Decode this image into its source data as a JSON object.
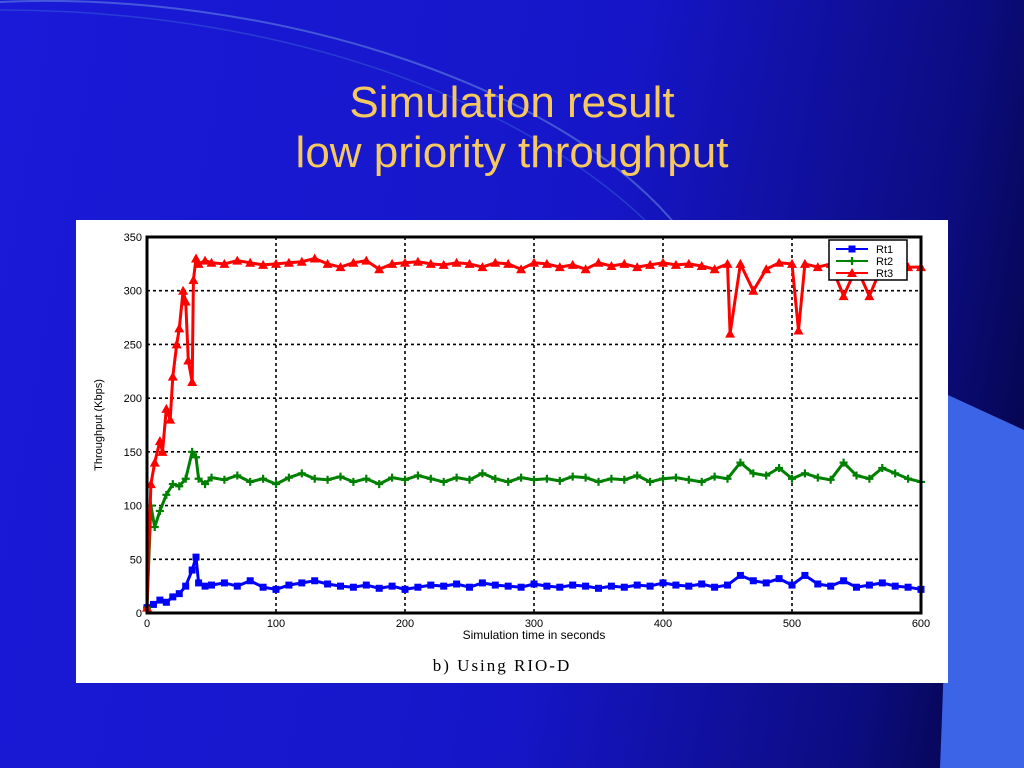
{
  "slide": {
    "title_line1": "Simulation result",
    "title_line2": "low priority throughput",
    "title_color": "#f5c860",
    "background_color": "#1818d0"
  },
  "chart_data": {
    "type": "line",
    "caption": "b) Using RIO-D",
    "xlabel": "Simulation time in seconds",
    "ylabel": "Throughput (Kbps)",
    "xlim": [
      0,
      600
    ],
    "ylim": [
      0,
      350
    ],
    "xticks": [
      0,
      100,
      200,
      300,
      400,
      500,
      600
    ],
    "yticks": [
      0,
      50,
      100,
      150,
      200,
      250,
      300,
      350
    ],
    "grid": true,
    "legend_position": "top-right",
    "series": [
      {
        "name": "Rt1",
        "color": "#0000ff",
        "marker": "square",
        "x": [
          0,
          5,
          10,
          15,
          20,
          25,
          30,
          35,
          38,
          40,
          45,
          50,
          60,
          70,
          80,
          90,
          100,
          110,
          120,
          130,
          140,
          150,
          160,
          170,
          180,
          190,
          200,
          210,
          220,
          230,
          240,
          250,
          260,
          270,
          280,
          290,
          300,
          310,
          320,
          330,
          340,
          350,
          360,
          370,
          380,
          390,
          400,
          410,
          420,
          430,
          440,
          450,
          460,
          470,
          480,
          490,
          500,
          510,
          520,
          530,
          540,
          550,
          560,
          570,
          580,
          590,
          600
        ],
        "values": [
          5,
          8,
          12,
          10,
          15,
          18,
          25,
          40,
          52,
          28,
          25,
          26,
          28,
          25,
          30,
          24,
          22,
          26,
          28,
          30,
          27,
          25,
          24,
          26,
          23,
          25,
          22,
          24,
          26,
          25,
          27,
          24,
          28,
          26,
          25,
          24,
          27,
          25,
          24,
          26,
          25,
          23,
          25,
          24,
          26,
          25,
          28,
          26,
          25,
          27,
          24,
          26,
          35,
          30,
          28,
          32,
          26,
          35,
          27,
          25,
          30,
          24,
          26,
          28,
          25,
          24,
          22
        ]
      },
      {
        "name": "Rt2",
        "color": "#008000",
        "marker": "plus",
        "x": [
          0,
          3,
          6,
          10,
          15,
          20,
          25,
          30,
          35,
          38,
          40,
          45,
          50,
          60,
          70,
          80,
          90,
          100,
          110,
          120,
          130,
          140,
          150,
          160,
          170,
          180,
          190,
          200,
          210,
          220,
          230,
          240,
          250,
          260,
          270,
          280,
          290,
          300,
          310,
          320,
          330,
          340,
          350,
          360,
          370,
          380,
          390,
          400,
          410,
          420,
          430,
          440,
          450,
          460,
          470,
          480,
          490,
          500,
          510,
          520,
          530,
          540,
          550,
          560,
          570,
          580,
          590,
          600
        ],
        "values": [
          5,
          100,
          80,
          95,
          110,
          120,
          118,
          125,
          150,
          145,
          125,
          120,
          126,
          124,
          128,
          122,
          125,
          120,
          126,
          130,
          125,
          124,
          127,
          122,
          125,
          120,
          126,
          124,
          128,
          125,
          122,
          126,
          124,
          130,
          125,
          122,
          126,
          124,
          125,
          123,
          127,
          126,
          122,
          125,
          124,
          128,
          122,
          125,
          126,
          124,
          122,
          127,
          125,
          140,
          130,
          128,
          135,
          125,
          130,
          126,
          124,
          140,
          128,
          125,
          135,
          130,
          125,
          122
        ]
      },
      {
        "name": "Rt3",
        "color": "#ff0000",
        "marker": "triangle",
        "x": [
          0,
          3,
          6,
          10,
          12,
          15,
          18,
          20,
          23,
          25,
          28,
          30,
          32,
          35,
          36,
          38,
          40,
          45,
          50,
          60,
          70,
          80,
          90,
          100,
          110,
          120,
          130,
          140,
          150,
          160,
          170,
          180,
          190,
          200,
          210,
          220,
          230,
          240,
          250,
          260,
          270,
          280,
          290,
          300,
          310,
          320,
          330,
          340,
          350,
          360,
          370,
          380,
          390,
          400,
          410,
          420,
          430,
          440,
          450,
          452,
          460,
          470,
          480,
          490,
          500,
          505,
          510,
          520,
          530,
          540,
          550,
          560,
          570,
          580,
          590,
          600
        ],
        "values": [
          5,
          120,
          140,
          160,
          150,
          190,
          180,
          220,
          250,
          265,
          300,
          290,
          235,
          215,
          310,
          330,
          325,
          328,
          326,
          325,
          328,
          326,
          324,
          325,
          326,
          327,
          330,
          325,
          322,
          326,
          328,
          320,
          325,
          326,
          327,
          325,
          324,
          326,
          325,
          322,
          326,
          325,
          320,
          326,
          325,
          322,
          324,
          320,
          326,
          323,
          325,
          322,
          324,
          326,
          324,
          325,
          323,
          320,
          325,
          260,
          325,
          300,
          320,
          326,
          325,
          263,
          325,
          322,
          325,
          295,
          322,
          295,
          324,
          325,
          322,
          322
        ]
      }
    ]
  }
}
